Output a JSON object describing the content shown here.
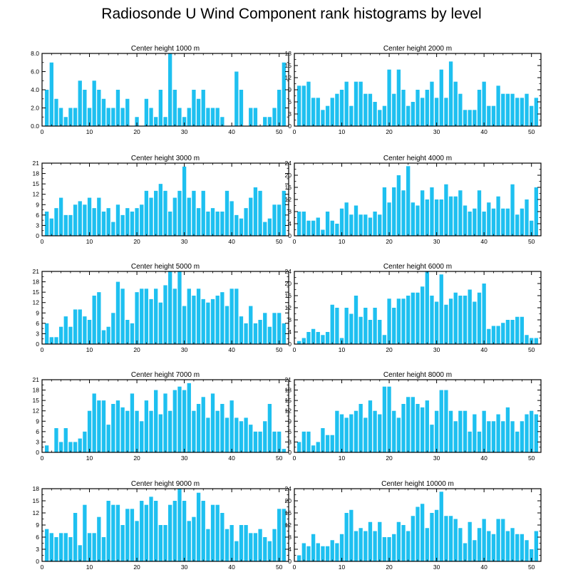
{
  "title": "Radiosonde U Wind Component rank histograms by level",
  "bar_color": "#1ec0f0",
  "chart_data": [
    {
      "type": "bar",
      "title": "Center height 1000 m",
      "xlim": [
        0,
        52
      ],
      "ylim": [
        0,
        8
      ],
      "xticks": [
        0,
        10,
        20,
        30,
        40,
        50
      ],
      "yticks": [
        0,
        2,
        4,
        6,
        8
      ],
      "ytick_labels": [
        "0.0",
        "2.0",
        "4.0",
        "6.0",
        "8.0"
      ],
      "x": [
        1,
        2,
        3,
        4,
        5,
        6,
        7,
        8,
        9,
        10,
        11,
        12,
        13,
        14,
        15,
        16,
        17,
        18,
        19,
        20,
        21,
        22,
        23,
        24,
        25,
        26,
        27,
        28,
        29,
        30,
        31,
        32,
        33,
        34,
        35,
        36,
        37,
        38,
        39,
        40,
        41,
        42,
        43,
        44,
        45,
        46,
        47,
        48,
        49,
        50,
        51
      ],
      "values": [
        4,
        7,
        3,
        2,
        1,
        2,
        2,
        5,
        4,
        2,
        5,
        4,
        3,
        2,
        2,
        4,
        2,
        3,
        0,
        1,
        0,
        3,
        2,
        1,
        4,
        1,
        8,
        4,
        2,
        1,
        2,
        4,
        3,
        4,
        2,
        2,
        2,
        1,
        0,
        0,
        6,
        4,
        0,
        2,
        2,
        0,
        1,
        1,
        2,
        4,
        7
      ]
    },
    {
      "type": "bar",
      "title": "Center height 2000 m",
      "xlim": [
        0,
        52
      ],
      "ylim": [
        0,
        18
      ],
      "xticks": [
        0,
        10,
        20,
        30,
        40,
        50
      ],
      "yticks": [
        0,
        3,
        6,
        9,
        12,
        15,
        18
      ],
      "ytick_labels": [
        "0",
        "3",
        "6",
        "9",
        "12",
        "15",
        "18"
      ],
      "x": [
        1,
        2,
        3,
        4,
        5,
        6,
        7,
        8,
        9,
        10,
        11,
        12,
        13,
        14,
        15,
        16,
        17,
        18,
        19,
        20,
        21,
        22,
        23,
        24,
        25,
        26,
        27,
        28,
        29,
        30,
        31,
        32,
        33,
        34,
        35,
        36,
        37,
        38,
        39,
        40,
        41,
        42,
        43,
        44,
        45,
        46,
        47,
        48,
        49,
        50,
        51
      ],
      "values": [
        10,
        10,
        11,
        7,
        7,
        4,
        5,
        7,
        8,
        9,
        11,
        5,
        11,
        11,
        8,
        8,
        6,
        4,
        5,
        14,
        8,
        14,
        9,
        5,
        6,
        9,
        7,
        9,
        11,
        7,
        14,
        7,
        16,
        11,
        8,
        4,
        4,
        4,
        9,
        11,
        5,
        5,
        10,
        8,
        8,
        8,
        7,
        7,
        8,
        5,
        7
      ]
    },
    {
      "type": "bar",
      "title": "Center height 3000 m",
      "xlim": [
        0,
        52
      ],
      "ylim": [
        0,
        21
      ],
      "xticks": [
        0,
        10,
        20,
        30,
        40,
        50
      ],
      "yticks": [
        0,
        3,
        6,
        9,
        12,
        15,
        18,
        21
      ],
      "ytick_labels": [
        "0",
        "3",
        "6",
        "9",
        "12",
        "15",
        "18",
        "21"
      ],
      "x": [
        1,
        2,
        3,
        4,
        5,
        6,
        7,
        8,
        9,
        10,
        11,
        12,
        13,
        14,
        15,
        16,
        17,
        18,
        19,
        20,
        21,
        22,
        23,
        24,
        25,
        26,
        27,
        28,
        29,
        30,
        31,
        32,
        33,
        34,
        35,
        36,
        37,
        38,
        39,
        40,
        41,
        42,
        43,
        44,
        45,
        46,
        47,
        48,
        49,
        50,
        51
      ],
      "values": [
        7,
        5,
        8,
        11,
        6,
        6,
        9,
        10,
        9,
        11,
        8,
        11,
        7,
        8,
        4,
        9,
        6,
        8,
        7,
        8,
        9,
        13,
        11,
        13,
        15,
        13,
        7,
        11,
        13,
        20,
        11,
        13,
        8,
        13,
        7,
        8,
        7,
        7,
        13,
        10,
        6,
        5,
        8,
        11,
        14,
        13,
        4,
        5,
        9,
        9,
        13
      ]
    },
    {
      "type": "bar",
      "title": "Center height 4000 m",
      "xlim": [
        0,
        52
      ],
      "ylim": [
        0,
        24
      ],
      "xticks": [
        0,
        10,
        20,
        30,
        40,
        50
      ],
      "yticks": [
        0,
        4,
        8,
        12,
        16,
        20,
        24
      ],
      "ytick_labels": [
        "0",
        "4",
        "8",
        "12",
        "16",
        "20",
        "24"
      ],
      "x": [
        1,
        2,
        3,
        4,
        5,
        6,
        7,
        8,
        9,
        10,
        11,
        12,
        13,
        14,
        15,
        16,
        17,
        18,
        19,
        20,
        21,
        22,
        23,
        24,
        25,
        26,
        27,
        28,
        29,
        30,
        31,
        32,
        33,
        34,
        35,
        36,
        37,
        38,
        39,
        40,
        41,
        42,
        43,
        44,
        45,
        46,
        47,
        48,
        49,
        50,
        51
      ],
      "values": [
        8,
        8,
        5,
        5,
        6,
        2,
        8,
        5,
        4,
        9,
        11,
        7,
        10,
        7,
        7,
        6,
        8,
        7,
        16,
        11,
        16,
        20,
        15,
        23,
        11,
        10,
        15,
        12,
        16,
        12,
        12,
        17,
        13,
        13,
        15,
        10,
        8,
        9,
        15,
        8,
        11,
        9,
        13,
        9,
        9,
        17,
        7,
        9,
        12,
        5,
        16
      ]
    },
    {
      "type": "bar",
      "title": "Center height 5000 m",
      "xlim": [
        0,
        52
      ],
      "ylim": [
        0,
        21
      ],
      "xticks": [
        0,
        10,
        20,
        30,
        40,
        50
      ],
      "yticks": [
        0,
        3,
        6,
        9,
        12,
        15,
        18,
        21
      ],
      "ytick_labels": [
        "0",
        "3",
        "6",
        "9",
        "12",
        "15",
        "18",
        "21"
      ],
      "x": [
        1,
        2,
        3,
        4,
        5,
        6,
        7,
        8,
        9,
        10,
        11,
        12,
        13,
        14,
        15,
        16,
        17,
        18,
        19,
        20,
        21,
        22,
        23,
        24,
        25,
        26,
        27,
        28,
        29,
        30,
        31,
        32,
        33,
        34,
        35,
        36,
        37,
        38,
        39,
        40,
        41,
        42,
        43,
        44,
        45,
        46,
        47,
        48,
        49,
        50,
        51
      ],
      "values": [
        6,
        2,
        2,
        5,
        8,
        5,
        10,
        10,
        8,
        7,
        14,
        15,
        4,
        5,
        9,
        18,
        16,
        7,
        6,
        15,
        16,
        16,
        13,
        16,
        12,
        17,
        21,
        16,
        21,
        11,
        16,
        14,
        16,
        13,
        12,
        13,
        14,
        15,
        11,
        16,
        16,
        8,
        6,
        11,
        6,
        7,
        9,
        5,
        9,
        9,
        6
      ]
    },
    {
      "type": "bar",
      "title": "Center height 6000 m",
      "xlim": [
        0,
        52
      ],
      "ylim": [
        0,
        24
      ],
      "xticks": [
        0,
        10,
        20,
        30,
        40,
        50
      ],
      "yticks": [
        0,
        4,
        8,
        12,
        16,
        20,
        24
      ],
      "ytick_labels": [
        "0",
        "4",
        "8",
        "12",
        "16",
        "20",
        "24"
      ],
      "x": [
        1,
        2,
        3,
        4,
        5,
        6,
        7,
        8,
        9,
        10,
        11,
        12,
        13,
        14,
        15,
        16,
        17,
        18,
        19,
        20,
        21,
        22,
        23,
        24,
        25,
        26,
        27,
        28,
        29,
        30,
        31,
        32,
        33,
        34,
        35,
        36,
        37,
        38,
        39,
        40,
        41,
        42,
        43,
        44,
        45,
        46,
        47,
        48,
        49,
        50,
        51
      ],
      "values": [
        1,
        2,
        4,
        5,
        4,
        3,
        4,
        13,
        12,
        2,
        12,
        10,
        16,
        9,
        12,
        8,
        12,
        8,
        3,
        15,
        12,
        15,
        15,
        16,
        17,
        17,
        19,
        24,
        16,
        14,
        23,
        13,
        15,
        17,
        16,
        16,
        18,
        14,
        17,
        20,
        5,
        6,
        6,
        7,
        8,
        8,
        9,
        9,
        3,
        2,
        2
      ]
    },
    {
      "type": "bar",
      "title": "Center height 7000 m",
      "xlim": [
        0,
        52
      ],
      "ylim": [
        0,
        21
      ],
      "xticks": [
        0,
        10,
        20,
        30,
        40,
        50
      ],
      "yticks": [
        0,
        3,
        6,
        9,
        12,
        15,
        18,
        21
      ],
      "ytick_labels": [
        "0",
        "3",
        "6",
        "9",
        "12",
        "15",
        "18",
        "21"
      ],
      "x": [
        1,
        2,
        3,
        4,
        5,
        6,
        7,
        8,
        9,
        10,
        11,
        12,
        13,
        14,
        15,
        16,
        17,
        18,
        19,
        20,
        21,
        22,
        23,
        24,
        25,
        26,
        27,
        28,
        29,
        30,
        31,
        32,
        33,
        34,
        35,
        36,
        37,
        38,
        39,
        40,
        41,
        42,
        43,
        44,
        45,
        46,
        47,
        48,
        49,
        50,
        51
      ],
      "values": [
        2,
        0,
        7,
        3,
        7,
        3,
        3,
        4,
        6,
        12,
        17,
        15,
        15,
        8,
        14,
        15,
        13,
        12,
        17,
        12,
        9,
        15,
        12,
        18,
        11,
        17,
        12,
        18,
        19,
        18,
        20,
        12,
        14,
        16,
        10,
        17,
        12,
        14,
        10,
        15,
        10,
        9,
        10,
        8,
        6,
        6,
        9,
        14,
        6,
        6,
        1
      ]
    },
    {
      "type": "bar",
      "title": "Center height 8000 m",
      "xlim": [
        0,
        52
      ],
      "ylim": [
        0,
        21
      ],
      "xticks": [
        0,
        10,
        20,
        30,
        40,
        50
      ],
      "yticks": [
        0,
        3,
        6,
        9,
        12,
        15,
        18,
        21
      ],
      "ytick_labels": [
        "0",
        "3",
        "6",
        "9",
        "12",
        "15",
        "18",
        "21"
      ],
      "x": [
        1,
        2,
        3,
        4,
        5,
        6,
        7,
        8,
        9,
        10,
        11,
        12,
        13,
        14,
        15,
        16,
        17,
        18,
        19,
        20,
        21,
        22,
        23,
        24,
        25,
        26,
        27,
        28,
        29,
        30,
        31,
        32,
        33,
        34,
        35,
        36,
        37,
        38,
        39,
        40,
        41,
        42,
        43,
        44,
        45,
        46,
        47,
        48,
        49,
        50,
        51
      ],
      "values": [
        3,
        6,
        6,
        2,
        3,
        7,
        5,
        5,
        12,
        11,
        10,
        11,
        12,
        14,
        10,
        15,
        12,
        11,
        19,
        19,
        12,
        10,
        14,
        16,
        16,
        14,
        13,
        15,
        8,
        12,
        18,
        18,
        12,
        9,
        12,
        12,
        6,
        11,
        6,
        12,
        9,
        9,
        11,
        9,
        13,
        9,
        6,
        9,
        11,
        12,
        11
      ]
    },
    {
      "type": "bar",
      "title": "Center height 9000 m",
      "xlim": [
        0,
        52
      ],
      "ylim": [
        0,
        18
      ],
      "xticks": [
        0,
        10,
        20,
        30,
        40,
        50
      ],
      "yticks": [
        0,
        3,
        6,
        9,
        12,
        15,
        18
      ],
      "ytick_labels": [
        "0",
        "3",
        "6",
        "9",
        "12",
        "15",
        "18"
      ],
      "x": [
        1,
        2,
        3,
        4,
        5,
        6,
        7,
        8,
        9,
        10,
        11,
        12,
        13,
        14,
        15,
        16,
        17,
        18,
        19,
        20,
        21,
        22,
        23,
        24,
        25,
        26,
        27,
        28,
        29,
        30,
        31,
        32,
        33,
        34,
        35,
        36,
        37,
        38,
        39,
        40,
        41,
        42,
        43,
        44,
        45,
        46,
        47,
        48,
        49,
        50,
        51
      ],
      "values": [
        8,
        7,
        6,
        7,
        7,
        6,
        12,
        4,
        14,
        7,
        7,
        11,
        6,
        15,
        14,
        14,
        9,
        13,
        13,
        10,
        15,
        14,
        16,
        15,
        9,
        9,
        14,
        15,
        18,
        15,
        10,
        11,
        17,
        15,
        8,
        14,
        14,
        12,
        8,
        9,
        5,
        9,
        9,
        7,
        7,
        8,
        6,
        5,
        8,
        13,
        13
      ]
    },
    {
      "type": "bar",
      "title": "Center height 10000 m",
      "xlim": [
        0,
        52
      ],
      "ylim": [
        0,
        24
      ],
      "xticks": [
        0,
        10,
        20,
        30,
        40,
        50
      ],
      "yticks": [
        0,
        4,
        8,
        12,
        16,
        20,
        24
      ],
      "ytick_labels": [
        "0",
        "4",
        "8",
        "12",
        "16",
        "20",
        "24"
      ],
      "x": [
        1,
        2,
        3,
        4,
        5,
        6,
        7,
        8,
        9,
        10,
        11,
        12,
        13,
        14,
        15,
        16,
        17,
        18,
        19,
        20,
        21,
        22,
        23,
        24,
        25,
        26,
        27,
        28,
        29,
        30,
        31,
        32,
        33,
        34,
        35,
        36,
        37,
        38,
        39,
        40,
        41,
        42,
        43,
        44,
        45,
        46,
        47,
        48,
        49,
        50,
        51
      ],
      "values": [
        2,
        6,
        5,
        9,
        6,
        5,
        5,
        7,
        6,
        9,
        16,
        17,
        10,
        11,
        10,
        13,
        10,
        13,
        8,
        8,
        9,
        13,
        12,
        10,
        15,
        18,
        19,
        11,
        16,
        17,
        23,
        15,
        15,
        14,
        11,
        6,
        13,
        7,
        11,
        14,
        10,
        9,
        14,
        14,
        10,
        11,
        9,
        9,
        7,
        4,
        10
      ]
    }
  ]
}
